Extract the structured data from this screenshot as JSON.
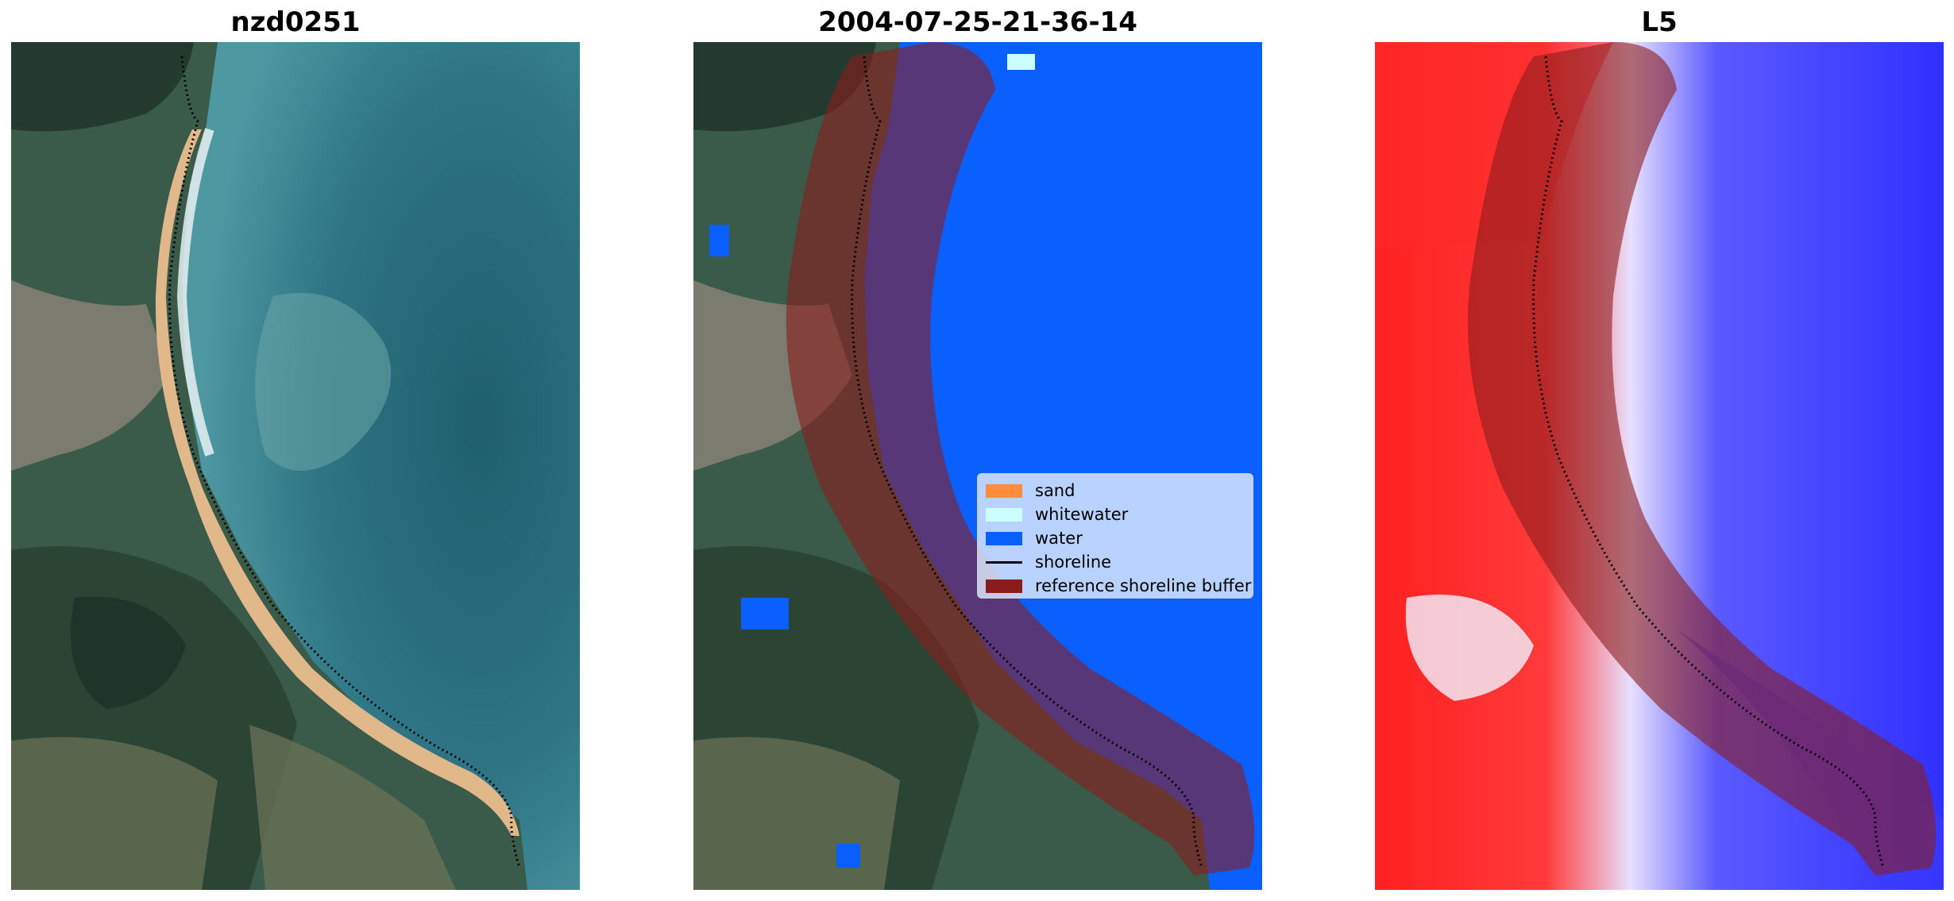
{
  "panels": [
    {
      "title": "nzd0251"
    },
    {
      "title": "2004-07-25-21-36-14"
    },
    {
      "title": "L5"
    }
  ],
  "legend": {
    "items": [
      {
        "label": "sand",
        "color": "#ff8c3f"
      },
      {
        "label": "whitewater",
        "color": "#ccffff"
      },
      {
        "label": "water",
        "color": "#0a5fff"
      },
      {
        "label": "shoreline",
        "color": "#000000"
      },
      {
        "label": "reference shoreline buffer",
        "color": "#8b1c1c"
      }
    ]
  },
  "colors": {
    "land_dark": "#2f4a3c",
    "sea": "#3a7d8c",
    "water_class": "#0a5fff",
    "buffer": "#8b1c1c",
    "index_positive": "#ff2020",
    "index_negative": "#2a2aff"
  }
}
